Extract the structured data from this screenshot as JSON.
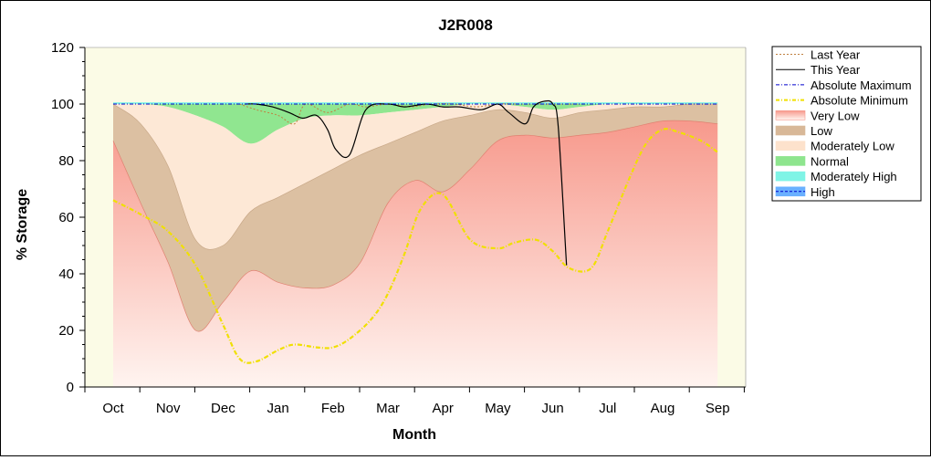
{
  "chart_data": {
    "type": "area",
    "title": "J2R008",
    "xlabel": "Month",
    "ylabel": "% Storage",
    "ylim": [
      0,
      120
    ],
    "yticks": [
      0,
      20,
      40,
      60,
      80,
      100,
      120
    ],
    "categories": [
      "Oct",
      "Nov",
      "Dec",
      "Jan",
      "Feb",
      "Mar",
      "Apr",
      "May",
      "Jun",
      "Jul",
      "Aug",
      "Sep"
    ],
    "grid": false,
    "legend_position": "right",
    "bands_x": [
      0,
      0.5,
      1,
      1.5,
      2,
      2.5,
      3,
      3.5,
      4,
      4.5,
      5,
      5.5,
      6,
      6.5,
      7,
      7.5,
      8,
      8.5,
      9,
      9.5,
      10,
      10.5,
      11
    ],
    "very_low_upper": [
      87,
      65,
      44,
      20,
      30,
      41,
      37,
      35,
      36,
      44,
      65,
      73,
      69,
      77,
      87,
      89,
      88,
      89,
      90,
      92,
      94,
      94,
      93
    ],
    "low_upper": [
      100,
      93,
      78,
      52,
      50,
      62,
      67,
      72,
      77,
      82,
      86,
      90,
      94,
      96,
      98,
      97,
      95,
      97,
      98,
      99,
      99,
      100,
      100
    ],
    "moderately_low_upper": [
      100,
      100,
      99,
      96,
      92,
      86,
      91,
      95,
      96,
      96,
      97,
      98,
      99,
      100,
      100,
      99,
      98,
      99,
      100,
      100,
      100,
      100,
      100
    ],
    "normal_upper": [
      100,
      100,
      100,
      100,
      100,
      100,
      100,
      100,
      100,
      100,
      100,
      100,
      100,
      100,
      100,
      100,
      100,
      100,
      100,
      100,
      100,
      100,
      100
    ],
    "series": [
      {
        "name": "Last Year",
        "x": [
          2.3,
          2.6,
          3.0,
          3.3,
          3.5,
          3.9,
          4.3,
          4.6,
          5.0,
          5.4,
          5.8,
          6.2,
          6.6,
          7.0,
          7.4,
          7.8,
          8.2,
          8.5
        ],
        "y": [
          100,
          98,
          96,
          93,
          100,
          97,
          100,
          99,
          100,
          99,
          100,
          100,
          99,
          100,
          100,
          100,
          100,
          100
        ]
      },
      {
        "name": "This Year",
        "x": [
          2.4,
          2.6,
          2.9,
          3.2,
          3.45,
          3.7,
          3.9,
          4.05,
          4.3,
          4.6,
          5.0,
          5.3,
          5.7,
          6.0,
          6.3,
          6.7,
          7.0,
          7.2,
          7.5,
          7.65,
          7.85,
          8.0,
          8.1,
          8.25
        ],
        "y": [
          100,
          100,
          99,
          97,
          95,
          96,
          91,
          84,
          82,
          98,
          100,
          99,
          100,
          99,
          99,
          98,
          100,
          97,
          93,
          99,
          101,
          100,
          92,
          43
        ]
      },
      {
        "name": "Absolute Maximum",
        "x": [
          0,
          11
        ],
        "y": [
          100,
          100
        ]
      },
      {
        "name": "Absolute Minimum",
        "x": [
          0,
          0.5,
          1,
          1.5,
          2,
          2.3,
          2.6,
          3,
          3.3,
          3.7,
          4.0,
          4.3,
          4.7,
          5.0,
          5.3,
          5.6,
          6.0,
          6.5,
          7.0,
          7.3,
          7.7,
          8.0,
          8.3,
          8.7,
          9.0,
          9.4,
          9.7,
          10.0,
          10.3,
          10.7,
          11.0
        ],
        "y": [
          66,
          61,
          55,
          43,
          22,
          10,
          9,
          13,
          15,
          14,
          14,
          17,
          24,
          33,
          47,
          63,
          68,
          52,
          49,
          51,
          52,
          48,
          42,
          42,
          55,
          74,
          86,
          91,
          90,
          87,
          83
        ]
      }
    ],
    "legend": [
      {
        "label": "Last Year",
        "style": "dotted",
        "color": "#c08040"
      },
      {
        "label": "This Year",
        "style": "solid",
        "color": "#000000"
      },
      {
        "label": "Absolute Maximum",
        "style": "dashdot",
        "color": "#0000cc"
      },
      {
        "label": "Absolute Minimum",
        "style": "dashdot-thick",
        "color": "#f0e000"
      },
      {
        "label": "Very Low",
        "style": "band",
        "color": "#f7998c"
      },
      {
        "label": "Low",
        "style": "band",
        "color": "#d8b898"
      },
      {
        "label": "Moderately Low",
        "style": "band",
        "color": "#fde2cc"
      },
      {
        "label": "Normal",
        "style": "band",
        "color": "#8ee58e"
      },
      {
        "label": "Moderately High",
        "style": "band",
        "color": "#7ff4e6"
      },
      {
        "label": "High",
        "style": "band-dashed",
        "color": "#6ab0ff"
      }
    ],
    "colors": {
      "plot_bg": "#fbfbe6",
      "very_low_top": "#f7998c",
      "very_low_bottom": "#fff4f0",
      "low": "#dcc0a2",
      "moderately_low": "#fde8d6",
      "normal": "#90e690",
      "moderately_high": "#7ff4e6"
    }
  }
}
